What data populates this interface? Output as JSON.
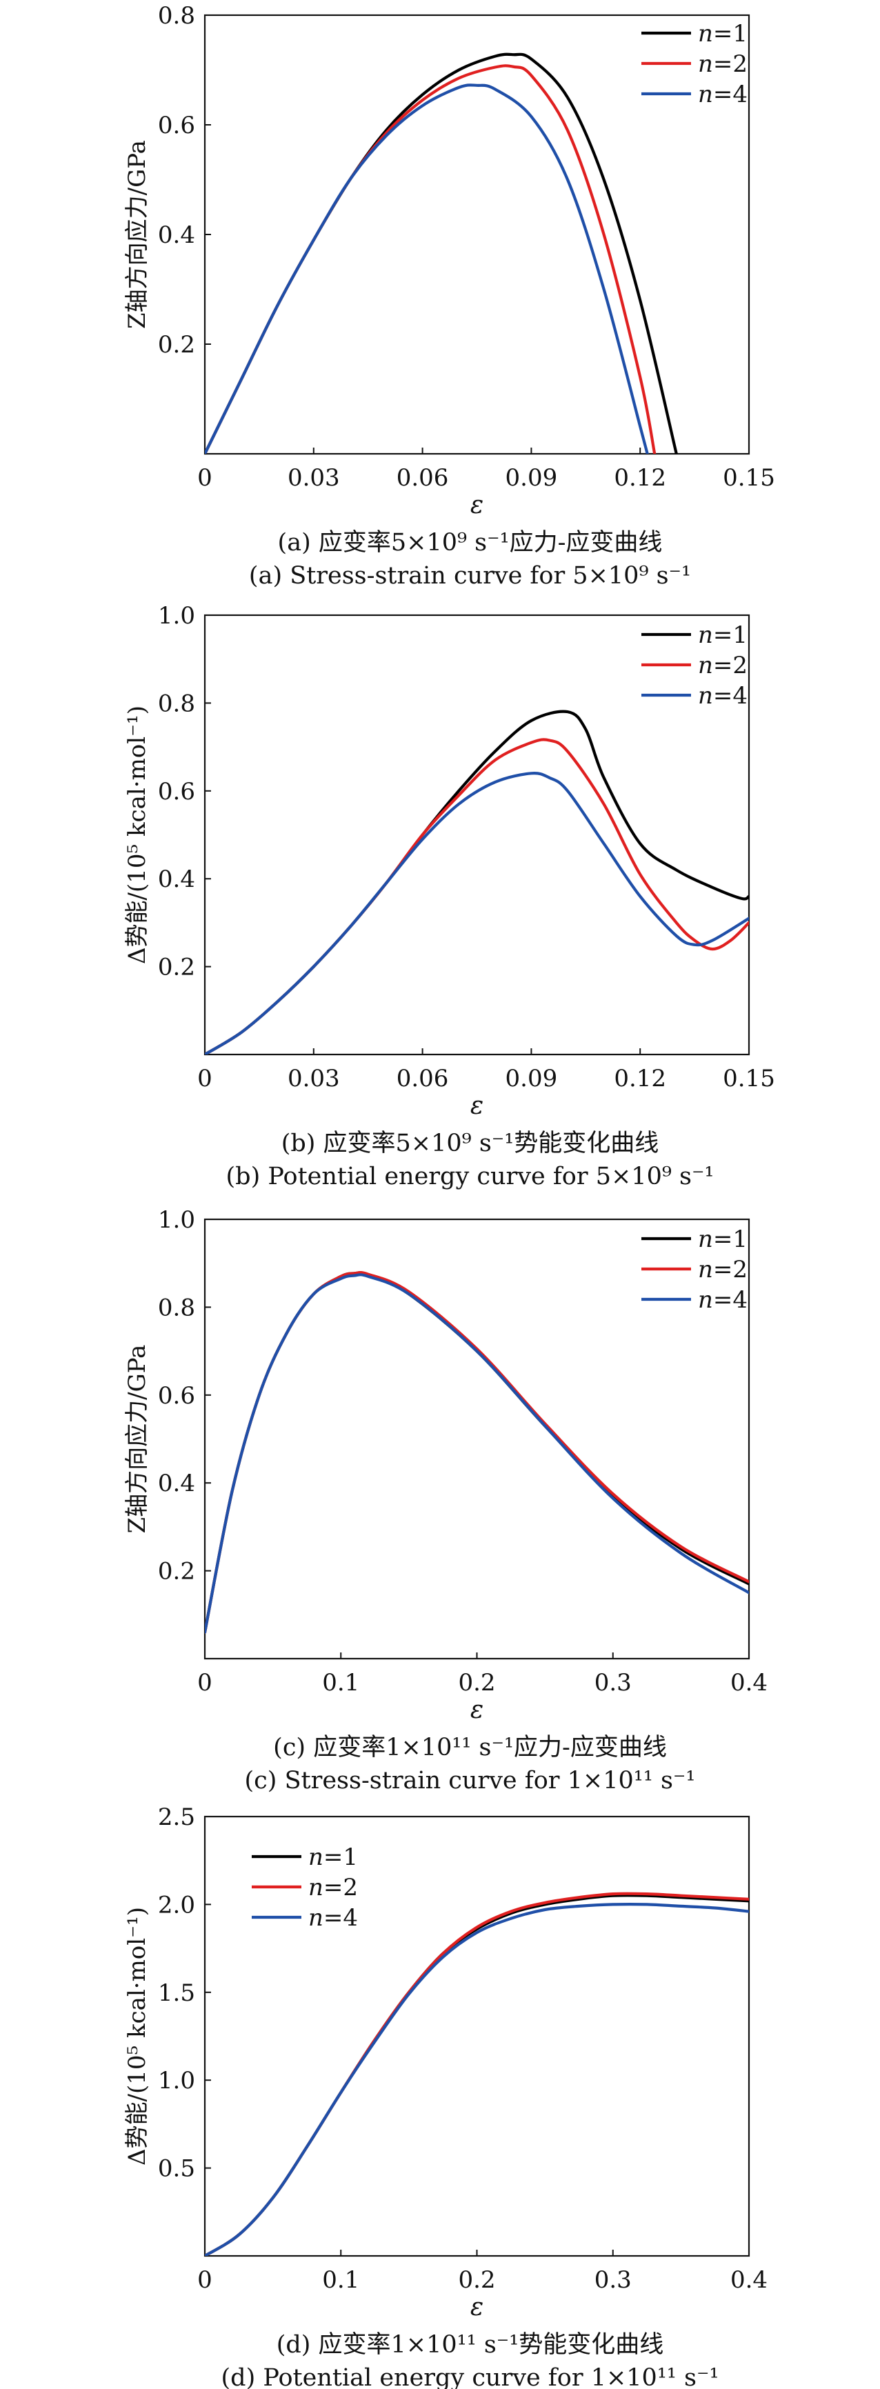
{
  "colors": {
    "n1": "#000000",
    "n2": "#e02020",
    "n4": "#1f4fa8"
  },
  "chart_data": [
    {
      "type": "line",
      "title": "",
      "caption_cn": "(a) 应变率5×10⁹ s⁻¹应力-应变曲线",
      "caption_en": "(a) Stress-strain curve for 5×10⁹ s⁻¹",
      "xlabel": "ε",
      "ylabel": "Z轴方向应力/GPa",
      "xlim": [
        0,
        0.15
      ],
      "ylim": [
        0,
        0.8
      ],
      "x_ticks": [
        "0",
        "0.03",
        "0.06",
        "0.09",
        "0.12",
        "0.15"
      ],
      "y_ticks": [
        "0.2",
        "0.4",
        "0.6",
        "0.8"
      ],
      "legend_position": "top-right",
      "legend": [
        "n=1",
        "n=2",
        "n=4"
      ],
      "series": [
        {
          "name": "n=1",
          "color": "#000000",
          "x": [
            0,
            0.01,
            0.02,
            0.03,
            0.04,
            0.05,
            0.06,
            0.07,
            0.08,
            0.085,
            0.09,
            0.1,
            0.11,
            0.12,
            0.13
          ],
          "y": [
            0,
            0.135,
            0.27,
            0.39,
            0.5,
            0.59,
            0.655,
            0.7,
            0.725,
            0.728,
            0.72,
            0.65,
            0.5,
            0.28,
            0.0
          ]
        },
        {
          "name": "n=2",
          "color": "#e02020",
          "x": [
            0,
            0.01,
            0.02,
            0.03,
            0.04,
            0.05,
            0.06,
            0.07,
            0.08,
            0.085,
            0.09,
            0.1,
            0.11,
            0.12,
            0.124
          ],
          "y": [
            0,
            0.135,
            0.27,
            0.39,
            0.5,
            0.585,
            0.645,
            0.685,
            0.705,
            0.706,
            0.69,
            0.59,
            0.4,
            0.14,
            0.0
          ]
        },
        {
          "name": "n=4",
          "color": "#1f4fa8",
          "x": [
            0,
            0.01,
            0.02,
            0.03,
            0.04,
            0.05,
            0.06,
            0.07,
            0.075,
            0.08,
            0.09,
            0.1,
            0.11,
            0.12,
            0.122
          ],
          "y": [
            0,
            0.135,
            0.27,
            0.39,
            0.5,
            0.58,
            0.635,
            0.668,
            0.672,
            0.665,
            0.615,
            0.5,
            0.3,
            0.05,
            0.0
          ]
        }
      ]
    },
    {
      "type": "line",
      "title": "",
      "caption_cn": "(b) 应变率5×10⁹ s⁻¹势能变化曲线",
      "caption_en": "(b) Potential energy curve for 5×10⁹ s⁻¹",
      "xlabel": "ε",
      "ylabel": "Δ势能/(10⁵ kcal·mol⁻¹)",
      "xlim": [
        0,
        0.15
      ],
      "ylim": [
        0,
        1.0
      ],
      "x_ticks": [
        "0",
        "0.03",
        "0.06",
        "0.09",
        "0.12",
        "0.15"
      ],
      "y_ticks": [
        "0.2",
        "0.4",
        "0.6",
        "0.8",
        "1.0"
      ],
      "legend_position": "top-right",
      "legend": [
        "n=1",
        "n=2",
        "n=4"
      ],
      "series": [
        {
          "name": "n=1",
          "color": "#000000",
          "x": [
            0,
            0.01,
            0.02,
            0.03,
            0.04,
            0.05,
            0.06,
            0.07,
            0.08,
            0.09,
            0.1,
            0.105,
            0.11,
            0.12,
            0.13,
            0.14,
            0.148,
            0.15
          ],
          "y": [
            0,
            0.05,
            0.12,
            0.2,
            0.29,
            0.39,
            0.5,
            0.6,
            0.69,
            0.76,
            0.78,
            0.74,
            0.63,
            0.48,
            0.42,
            0.38,
            0.355,
            0.36
          ]
        },
        {
          "name": "n=2",
          "color": "#e02020",
          "x": [
            0,
            0.01,
            0.02,
            0.03,
            0.04,
            0.05,
            0.06,
            0.07,
            0.08,
            0.09,
            0.095,
            0.1,
            0.11,
            0.12,
            0.13,
            0.135,
            0.14,
            0.145,
            0.15
          ],
          "y": [
            0,
            0.05,
            0.12,
            0.2,
            0.29,
            0.39,
            0.5,
            0.59,
            0.67,
            0.71,
            0.715,
            0.69,
            0.57,
            0.41,
            0.3,
            0.26,
            0.24,
            0.26,
            0.3
          ]
        },
        {
          "name": "n=4",
          "color": "#1f4fa8",
          "x": [
            0,
            0.01,
            0.02,
            0.03,
            0.04,
            0.05,
            0.06,
            0.07,
            0.08,
            0.09,
            0.095,
            0.1,
            0.11,
            0.12,
            0.13,
            0.135,
            0.14,
            0.15
          ],
          "y": [
            0,
            0.05,
            0.12,
            0.2,
            0.29,
            0.39,
            0.49,
            0.57,
            0.62,
            0.64,
            0.63,
            0.6,
            0.48,
            0.36,
            0.27,
            0.25,
            0.26,
            0.31
          ]
        }
      ]
    },
    {
      "type": "line",
      "title": "",
      "caption_cn": "(c) 应变率1×10¹¹ s⁻¹应力-应变曲线",
      "caption_en": "(c) Stress-strain curve for 1×10¹¹ s⁻¹",
      "xlabel": "ε",
      "ylabel": "Z轴方向应力/GPa",
      "xlim": [
        0,
        0.4
      ],
      "ylim": [
        0,
        1.0
      ],
      "x_ticks": [
        "0",
        "0.1",
        "0.2",
        "0.3",
        "0.4"
      ],
      "y_ticks": [
        "0.2",
        "0.4",
        "0.6",
        "0.8",
        "1.0"
      ],
      "legend_position": "top-right",
      "legend": [
        "n=1",
        "n=2",
        "n=4"
      ],
      "series": [
        {
          "name": "n=1",
          "color": "#000000",
          "x": [
            0,
            0.02,
            0.04,
            0.06,
            0.08,
            0.1,
            0.11,
            0.12,
            0.15,
            0.2,
            0.25,
            0.3,
            0.35,
            0.4
          ],
          "y": [
            0.06,
            0.38,
            0.6,
            0.74,
            0.83,
            0.87,
            0.877,
            0.874,
            0.83,
            0.7,
            0.53,
            0.37,
            0.25,
            0.17
          ]
        },
        {
          "name": "n=2",
          "color": "#e02020",
          "x": [
            0,
            0.02,
            0.04,
            0.06,
            0.08,
            0.1,
            0.11,
            0.12,
            0.15,
            0.2,
            0.25,
            0.3,
            0.35,
            0.4
          ],
          "y": [
            0.06,
            0.38,
            0.6,
            0.74,
            0.83,
            0.87,
            0.877,
            0.875,
            0.835,
            0.705,
            0.535,
            0.375,
            0.255,
            0.175
          ]
        },
        {
          "name": "n=4",
          "color": "#1f4fa8",
          "x": [
            0,
            0.02,
            0.04,
            0.06,
            0.08,
            0.1,
            0.11,
            0.12,
            0.15,
            0.2,
            0.25,
            0.3,
            0.35,
            0.4
          ],
          "y": [
            0.06,
            0.38,
            0.6,
            0.74,
            0.83,
            0.865,
            0.872,
            0.87,
            0.83,
            0.7,
            0.53,
            0.365,
            0.24,
            0.15
          ]
        }
      ]
    },
    {
      "type": "line",
      "title": "",
      "caption_cn": "(d) 应变率1×10¹¹ s⁻¹势能变化曲线",
      "caption_en": "(d) Potential energy curve for 1×10¹¹ s⁻¹",
      "xlabel": "ε",
      "ylabel": "Δ势能/(10⁵ kcal·mol⁻¹)",
      "xlim": [
        0,
        0.4
      ],
      "ylim": [
        0,
        2.5
      ],
      "x_ticks": [
        "0",
        "0.1",
        "0.2",
        "0.3",
        "0.4"
      ],
      "y_ticks": [
        "0.5",
        "1.0",
        "1.5",
        "2.0",
        "2.5"
      ],
      "legend_position": "top-left",
      "legend": [
        "n=1",
        "n=2",
        "n=4"
      ],
      "series": [
        {
          "name": "n=1",
          "color": "#000000",
          "x": [
            0,
            0.025,
            0.05,
            0.075,
            0.1,
            0.125,
            0.15,
            0.175,
            0.2,
            0.225,
            0.25,
            0.275,
            0.3,
            0.325,
            0.35,
            0.375,
            0.4
          ],
          "y": [
            0,
            0.12,
            0.33,
            0.62,
            0.93,
            1.23,
            1.5,
            1.72,
            1.86,
            1.95,
            2.0,
            2.03,
            2.05,
            2.05,
            2.04,
            2.03,
            2.02
          ]
        },
        {
          "name": "n=2",
          "color": "#e02020",
          "x": [
            0,
            0.025,
            0.05,
            0.075,
            0.1,
            0.125,
            0.15,
            0.175,
            0.2,
            0.225,
            0.25,
            0.275,
            0.3,
            0.325,
            0.35,
            0.375,
            0.4
          ],
          "y": [
            0,
            0.12,
            0.33,
            0.62,
            0.93,
            1.23,
            1.5,
            1.72,
            1.87,
            1.96,
            2.01,
            2.04,
            2.06,
            2.06,
            2.05,
            2.04,
            2.03
          ]
        },
        {
          "name": "n=4",
          "color": "#1f4fa8",
          "x": [
            0,
            0.025,
            0.05,
            0.075,
            0.1,
            0.125,
            0.15,
            0.175,
            0.2,
            0.225,
            0.25,
            0.275,
            0.3,
            0.325,
            0.35,
            0.375,
            0.4
          ],
          "y": [
            0,
            0.12,
            0.33,
            0.62,
            0.93,
            1.22,
            1.49,
            1.7,
            1.84,
            1.92,
            1.97,
            1.99,
            2.0,
            2.0,
            1.99,
            1.98,
            1.96
          ]
        }
      ]
    }
  ]
}
